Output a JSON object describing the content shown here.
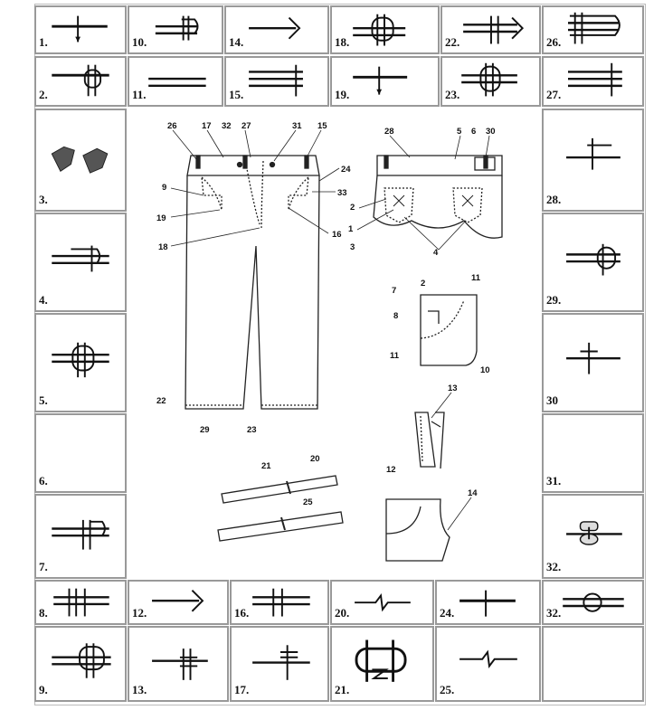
{
  "symbols": {
    "s1": "1.",
    "s10": "10.",
    "s14": "14.",
    "s18": "18.",
    "s22": "22.",
    "s26": "26.",
    "s2": "2.",
    "s11": "11.",
    "s15": "15.",
    "s19": "19.",
    "s23": "23.",
    "s27": "27.",
    "s3": "3.",
    "s28": "28.",
    "s4": "4.",
    "s29": "29.",
    "s5": "5.",
    "s30": "30",
    "s6": "6.",
    "s31": "31.",
    "s7": "7.",
    "s32a": "32.",
    "s8": "8.",
    "s12": "12.",
    "s16": "16.",
    "s20": "20.",
    "s24": "24.",
    "s32b": "32.",
    "s9": "9.",
    "s13": "13.",
    "s17": "17.",
    "s21": "21.",
    "s25": "25."
  },
  "callouts": {
    "c26": "26",
    "c17": "17",
    "c32": "32",
    "c27": "27",
    "c31": "31",
    "c15": "15",
    "c24": "24",
    "c33": "33",
    "c9": "9",
    "c19": "19",
    "c16": "16",
    "c18": "18",
    "c22": "22",
    "c29": "29",
    "c23": "23",
    "b28": "28",
    "b5": "5",
    "b6": "6",
    "b30": "30",
    "b2": "2",
    "b1": "1",
    "b3": "3",
    "b4": "4",
    "p11a": "11",
    "p2": "2",
    "p7": "7",
    "p8": "8",
    "p11b": "11",
    "p10": "10",
    "z13": "13",
    "z12": "12",
    "w21": "21",
    "w20": "20",
    "w25": "25",
    "h14": "14"
  }
}
